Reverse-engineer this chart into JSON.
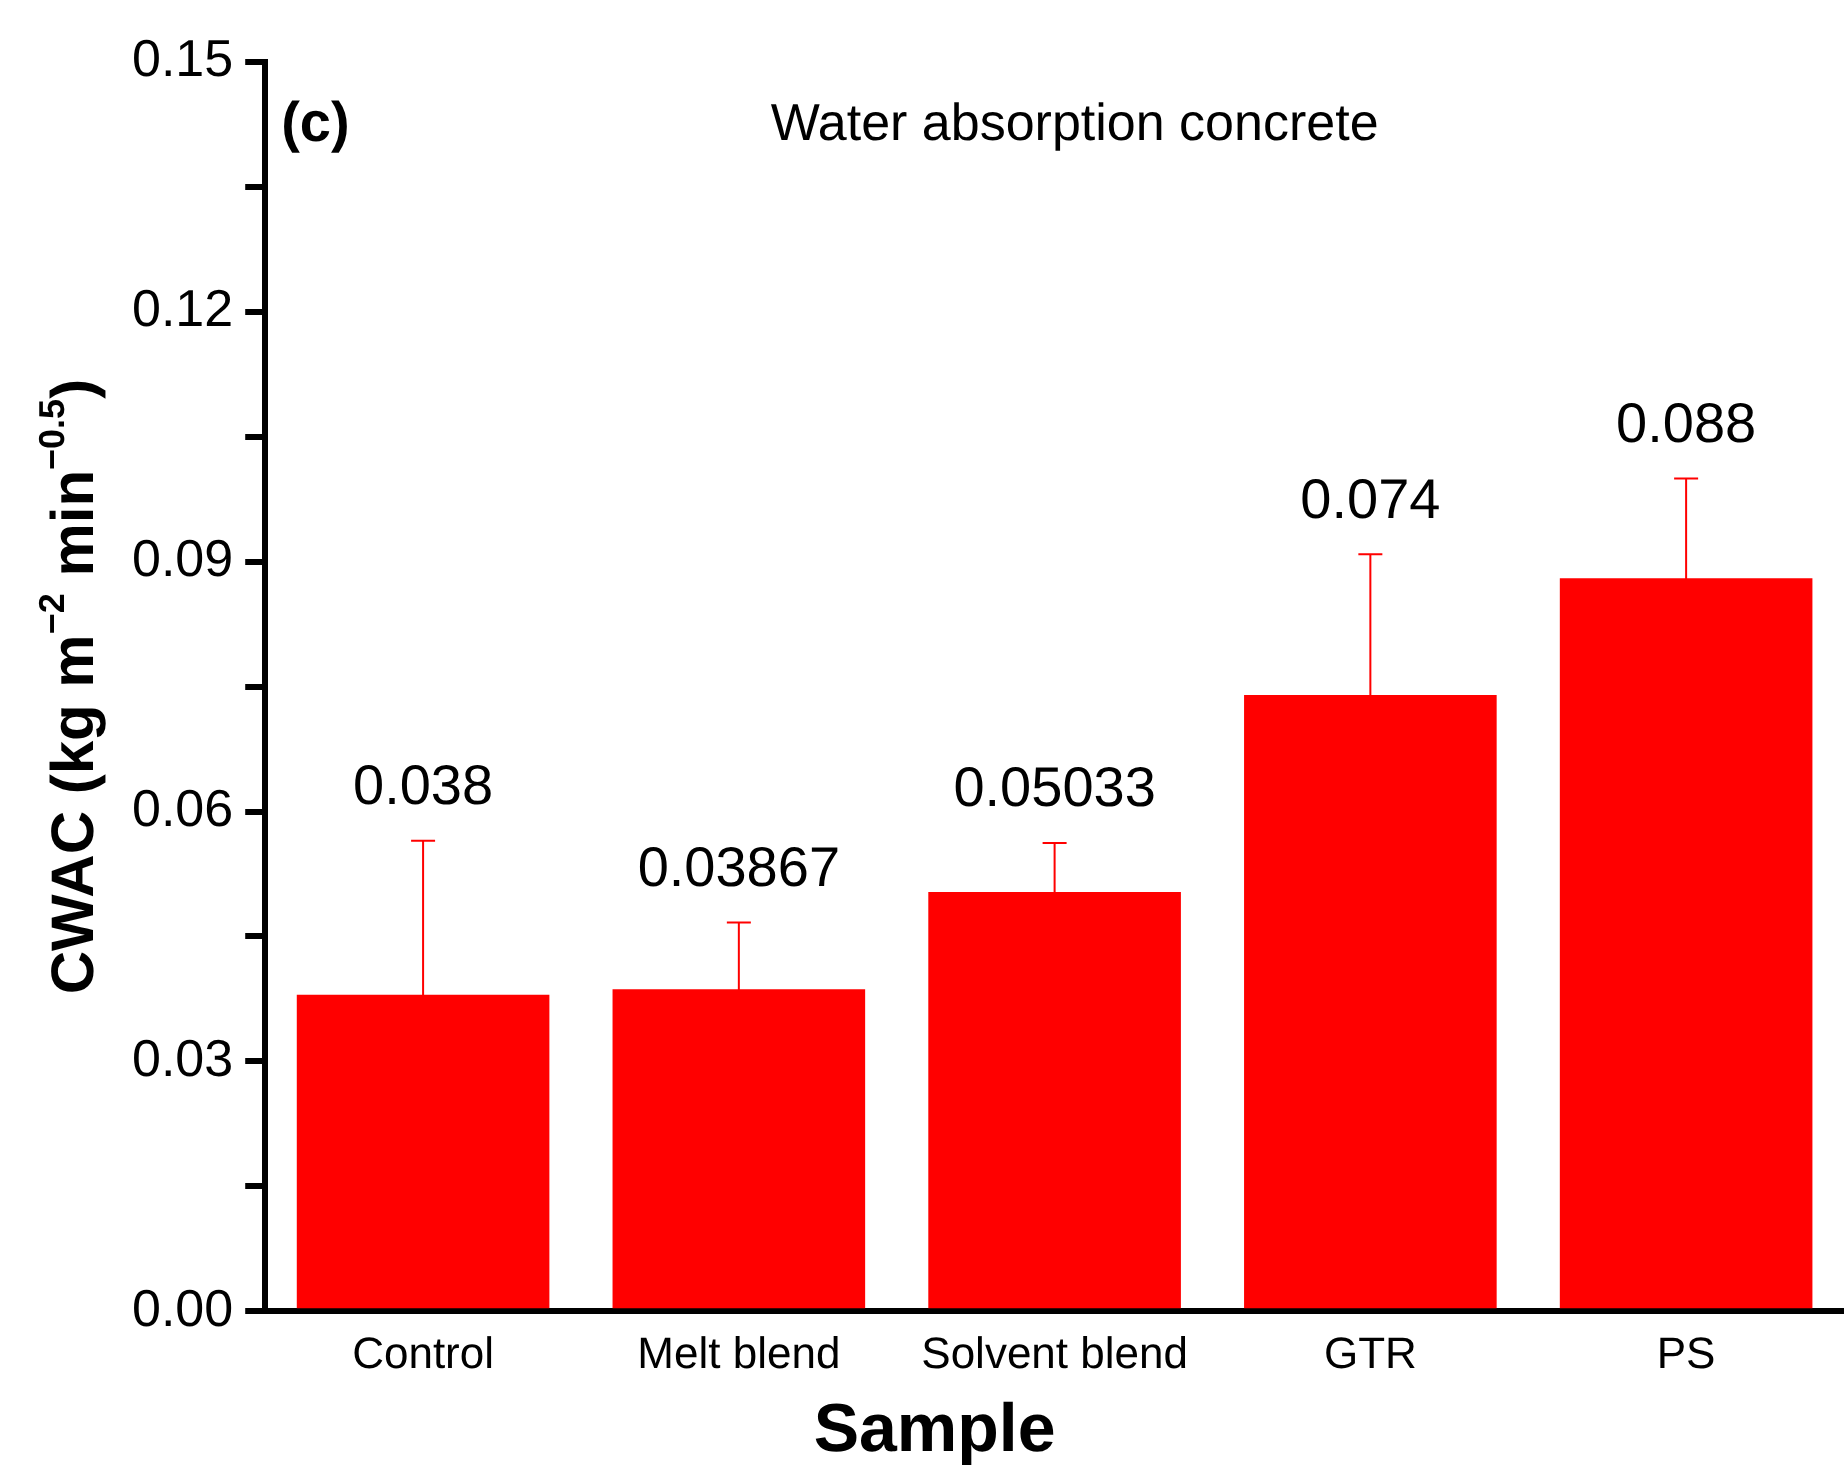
{
  "chart_data": {
    "type": "bar",
    "title": "Water absorption concrete",
    "xlabel": "Sample",
    "ylabel": "CWAC (kg m$^{−2}$ min$^{−0.5}$)",
    "annotations": [
      "(c)"
    ],
    "categories": [
      "Control",
      "Melt blend",
      "Solvent blend",
      "GTR",
      "PS"
    ],
    "values": [
      0.038,
      0.03867,
      0.05033,
      0.074,
      0.088
    ],
    "errors": [
      0.0185,
      0.008,
      0.0059,
      0.0169,
      0.012
    ],
    "color": "#ff0000",
    "data_labels": true,
    "grid": false,
    "legend": false,
    "ylim": [
      0,
      0.15
    ],
    "yticks": [
      {
        "value": 0,
        "label": "0.00"
      },
      {
        "value": 0.015,
        "label": null
      },
      {
        "value": 0.03,
        "label": "0.03"
      },
      {
        "value": 0.045,
        "label": null
      },
      {
        "value": 0.06,
        "label": "0.06"
      },
      {
        "value": 0.075,
        "label": null
      },
      {
        "value": 0.09,
        "label": "0.09"
      },
      {
        "value": 0.105,
        "label": null
      },
      {
        "value": 0.12,
        "label": "0.12"
      },
      {
        "value": 0.135,
        "label": null
      },
      {
        "value": 0.15,
        "label": "0.15"
      }
    ]
  }
}
